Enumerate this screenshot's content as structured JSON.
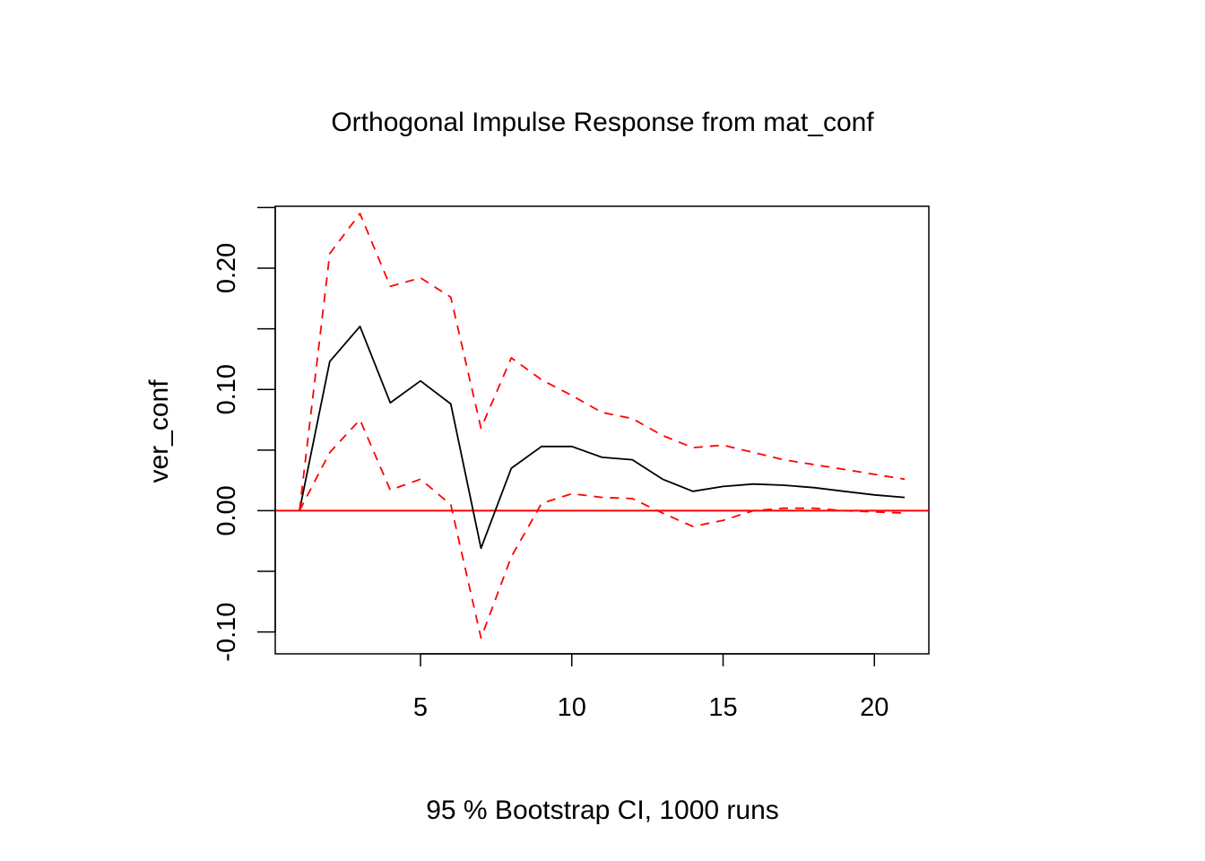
{
  "chart_data": {
    "type": "line",
    "title": "Orthogonal Impulse Response from mat_conf",
    "xlabel": "95 % Bootstrap CI,  1000 runs",
    "ylabel": "ver_conf",
    "xlim": [
      0.2,
      21.8
    ],
    "ylim": [
      -0.118,
      0.251
    ],
    "x_ticks": [
      5,
      10,
      15,
      20
    ],
    "x_tick_labels": [
      "5",
      "10",
      "15",
      "20"
    ],
    "y_ticks": [
      -0.1,
      -0.05,
      0.0,
      0.05,
      0.1,
      0.15,
      0.2,
      0.25
    ],
    "y_tick_labels": [
      "-0.10",
      "0.00",
      "0.10",
      "0.20"
    ],
    "y_labeled_ticks": [
      -0.1,
      0.0,
      0.1,
      0.2
    ],
    "reference_line": {
      "y": 0,
      "color": "#ff0000"
    },
    "x": [
      1,
      2,
      3,
      4,
      5,
      6,
      7,
      8,
      9,
      10,
      11,
      12,
      13,
      14,
      15,
      16,
      17,
      18,
      19,
      20,
      21
    ],
    "series": [
      {
        "role": "response",
        "color": "#000000",
        "style": "solid",
        "values": [
          0.0,
          0.123,
          0.152,
          0.089,
          0.107,
          0.088,
          -0.031,
          0.035,
          0.053,
          0.053,
          0.044,
          0.042,
          0.026,
          0.016,
          0.02,
          0.022,
          0.021,
          0.019,
          0.016,
          0.013,
          0.011
        ]
      },
      {
        "role": "upper",
        "color": "#ff0000",
        "style": "dashed",
        "values": [
          0.0,
          0.212,
          0.245,
          0.185,
          0.192,
          0.176,
          0.068,
          0.126,
          0.108,
          0.095,
          0.081,
          0.076,
          0.062,
          0.052,
          0.054,
          0.048,
          0.042,
          0.038,
          0.034,
          0.03,
          0.026
        ]
      },
      {
        "role": "lower",
        "color": "#ff0000",
        "style": "dashed",
        "values": [
          0.0,
          0.048,
          0.075,
          0.017,
          0.026,
          0.005,
          -0.105,
          -0.038,
          0.006,
          0.014,
          0.011,
          0.01,
          -0.002,
          -0.013,
          -0.008,
          0.0,
          0.002,
          0.002,
          0.0,
          -0.001,
          -0.002
        ]
      }
    ]
  }
}
